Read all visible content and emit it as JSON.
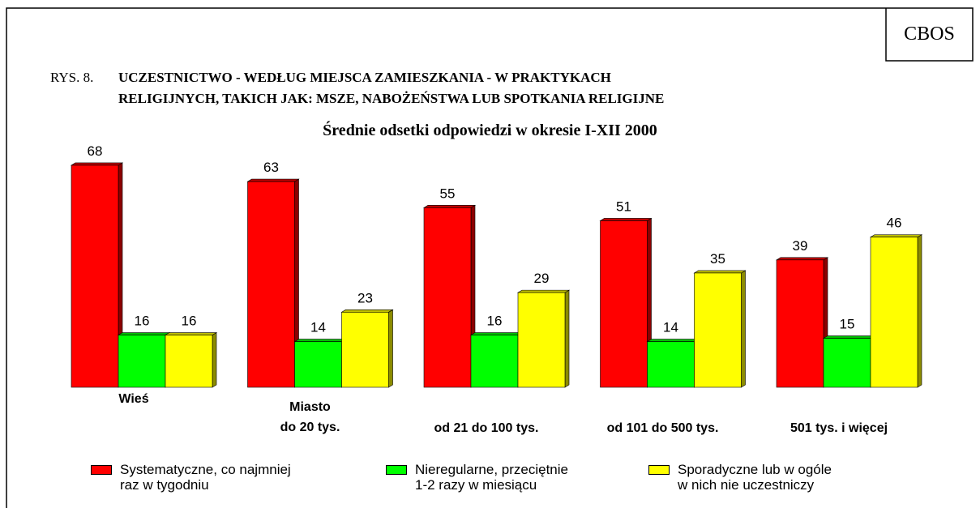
{
  "chart_data": {
    "type": "bar",
    "source": "CBOS",
    "figure_label": "RYS. 8.",
    "title": [
      "UCZESTNICTWO - WEDŁUG MIEJSCA ZAMIESZKANIA - W PRAKTYKACH",
      "RELIGIJNYCH, TAKICH JAK: MSZE, NABOŻEŃSTWA LUB SPOTKANIA RELIGIJNE"
    ],
    "subtitle": "Średnie odsetki odpowiedzi w okresie I-XII 2000",
    "categories": [
      "Wieś",
      "Miasto\ndo 20 tys.",
      "od 21 do 100 tys.",
      "od 101 do 500 tys.",
      "501 tys. i więcej"
    ],
    "series": [
      {
        "name": "Systematyczne, co najmniej\nraz w tygodniu",
        "color": "#ff0000",
        "values": [
          68,
          63,
          55,
          51,
          39
        ]
      },
      {
        "name": "Nieregularne, przeciętnie\n1-2 razy w miesiącu",
        "color": "#00ff00",
        "values": [
          16,
          14,
          16,
          14,
          15
        ]
      },
      {
        "name": "Sporadyczne lub w ogóle\nw nich nie uczestniczy",
        "color": "#ffff00",
        "values": [
          16,
          23,
          29,
          35,
          46
        ]
      }
    ]
  }
}
